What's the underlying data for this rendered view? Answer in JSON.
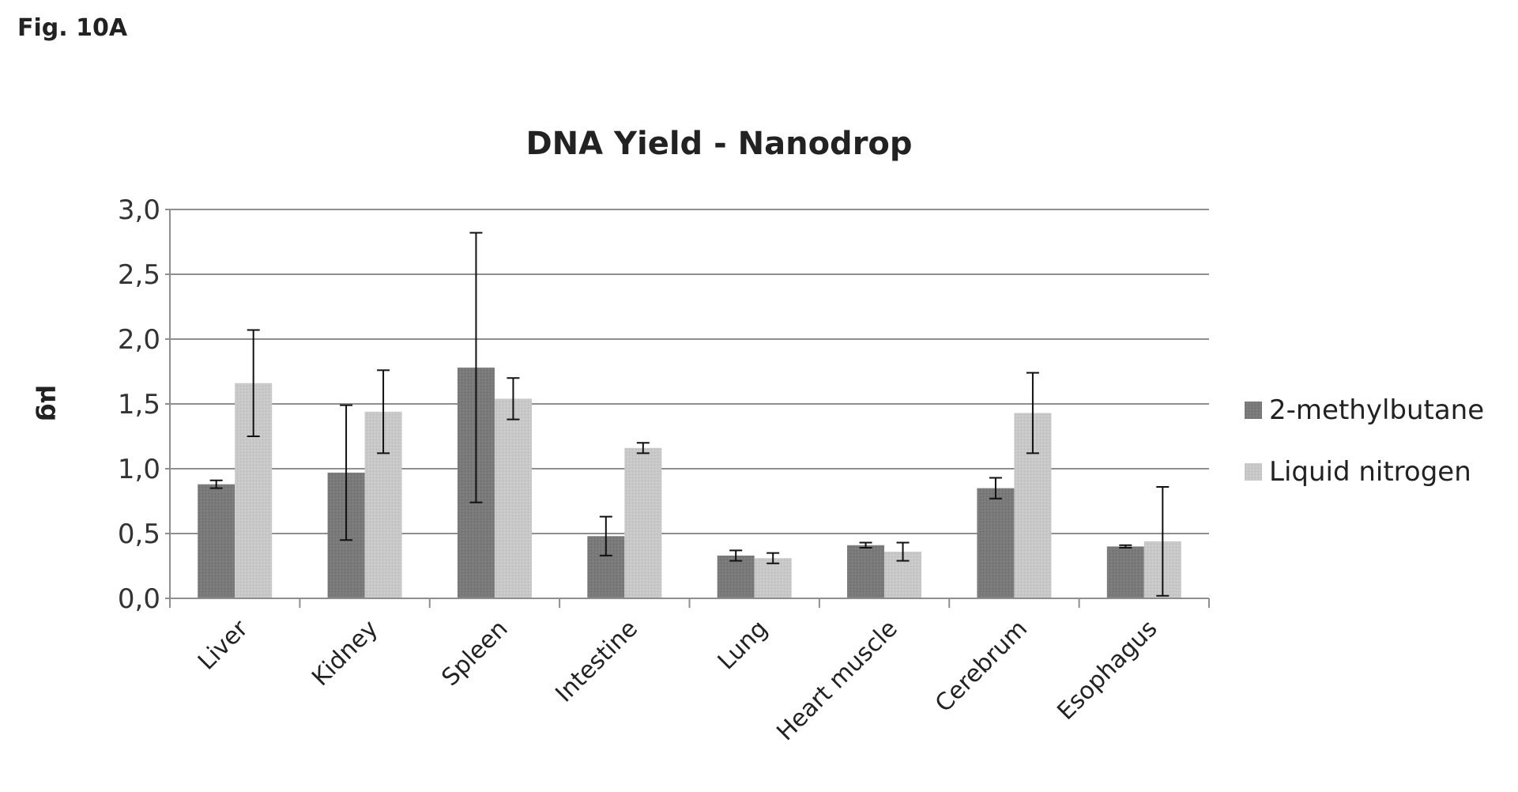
{
  "figure_label": "Fig. 10A",
  "chart_data": {
    "type": "bar",
    "title": "DNA Yield - Nanodrop",
    "xlabel": "",
    "ylabel": "µg",
    "ylim": [
      0,
      3.0
    ],
    "yticks": [
      "0,0",
      "0,5",
      "1,0",
      "1,5",
      "2,0",
      "2,5",
      "3,0"
    ],
    "grid": true,
    "legend_position": "right",
    "categories": [
      "Liver",
      "Kidney",
      "Spleen",
      "Intestine",
      "Lung",
      "Heart muscle",
      "Cerebrum",
      "Esophagus"
    ],
    "series": [
      {
        "name": "2-methylbutane",
        "color": "#7a7a7a",
        "values": [
          0.88,
          0.97,
          1.78,
          0.48,
          0.33,
          0.41,
          0.85,
          0.4
        ],
        "error": [
          0.03,
          0.52,
          1.04,
          0.15,
          0.04,
          0.02,
          0.08,
          0.01
        ]
      },
      {
        "name": "Liquid nitrogen",
        "color": "#c8c8c8",
        "values": [
          1.66,
          1.44,
          1.54,
          1.16,
          0.31,
          0.36,
          1.43,
          0.44
        ],
        "error": [
          0.41,
          0.32,
          0.16,
          0.04,
          0.04,
          0.07,
          0.31,
          0.42
        ]
      }
    ]
  }
}
